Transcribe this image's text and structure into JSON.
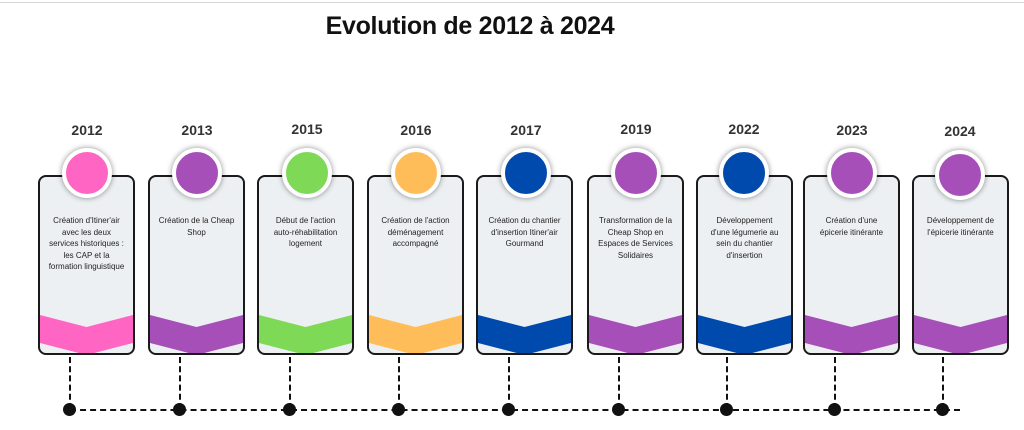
{
  "title": "Evolution de 2012 à 2024",
  "milestones": [
    {
      "year": "2012",
      "text": "Création d'Itiner'air avec les deux services historiques : les CAP et la formation linguistique",
      "color": "#ff66c4"
    },
    {
      "year": "2013",
      "text": "Création de la Cheap Shop",
      "color": "#a64fb8"
    },
    {
      "year": "2015",
      "text": "Début de l'action auto-réhabilitation logement",
      "color": "#7ed957"
    },
    {
      "year": "2016",
      "text": "Création de l'action déménagement accompagné",
      "color": "#ffbd59"
    },
    {
      "year": "2017",
      "text": "Création du chantier d'insertion Itiner'air Gourmand",
      "color": "#004aad"
    },
    {
      "year": "2019",
      "text": "Transformation de la Cheap Shop en Espaces de Services Solidaires",
      "color": "#a64fb8"
    },
    {
      "year": "2022",
      "text": "Développement d'une légumerie au sein du chantier d'insertion",
      "color": "#004aad"
    },
    {
      "year": "2023",
      "text": "Création d'une épicerie itinérante",
      "color": "#a64fb8"
    },
    {
      "year": "2024",
      "text": "Développement de l'épicerie itinérante",
      "color": "#a64fb8"
    }
  ]
}
